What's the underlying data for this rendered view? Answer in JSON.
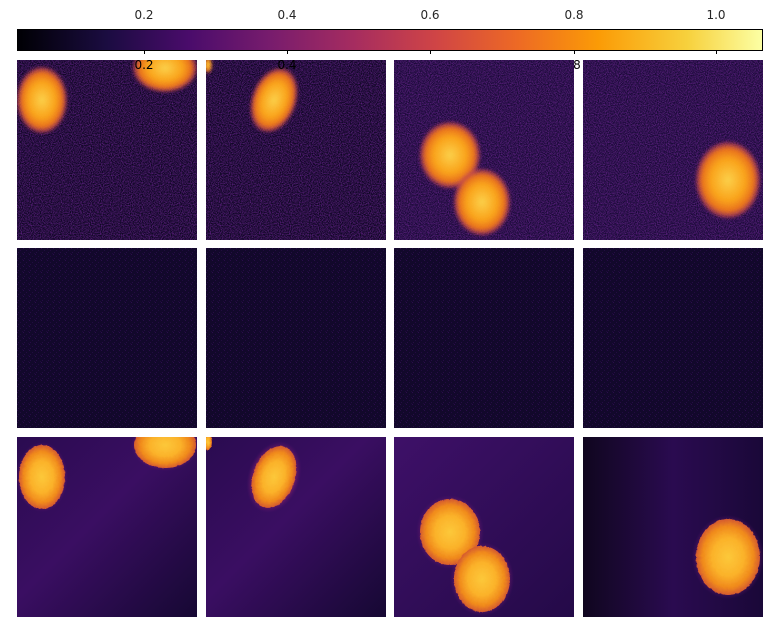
{
  "colorbar": {
    "colormap": "inferno",
    "top_ticks": [
      "0.2",
      "0.4",
      "0.6",
      "0.8",
      "1.0"
    ],
    "bottom_ticks": [
      "0.2",
      "0.4",
      "",
      "8",
      ""
    ]
  },
  "grid": {
    "rows": 3,
    "cols": 4,
    "row_contents": [
      "noisy-input",
      "noise-residual",
      "denoised-output"
    ]
  },
  "colors": {
    "background": "#ffffff",
    "panel_dark": "#0d0622",
    "cell_core": "#fcc83a",
    "cell_mid": "#f08a1c",
    "cell_edge": "#b8385b"
  }
}
